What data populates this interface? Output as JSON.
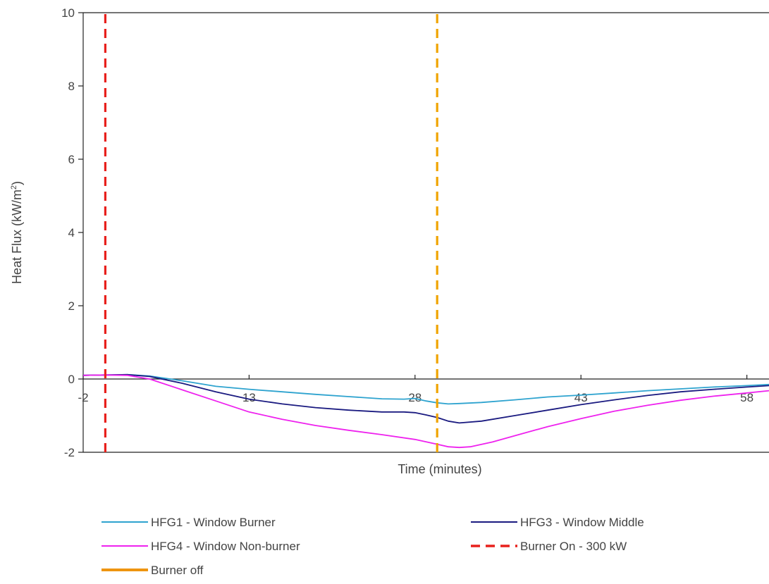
{
  "chart_data": {
    "type": "line",
    "title": "",
    "xlabel": "Time (minutes)",
    "ylabel_main": "Heat Flux (kW/m",
    "ylabel_sup": "2",
    "ylabel_close": ")",
    "xlim": [
      -2,
      60
    ],
    "ylim": [
      -2,
      10
    ],
    "x_ticks": [
      -2,
      13,
      28,
      43,
      58
    ],
    "y_ticks": [
      -2,
      0,
      2,
      4,
      6,
      8,
      10
    ],
    "grid": false,
    "legend_position": "bottom",
    "series": [
      {
        "name": "HFG1 - Window Burner",
        "color": "#2ea3cf",
        "style": "solid",
        "x": [
          -2,
          0,
          2,
          4,
          7,
          10,
          13,
          16,
          19,
          22,
          25,
          27,
          28,
          29,
          30,
          31,
          32,
          34,
          37,
          40,
          43,
          46,
          49,
          52,
          55,
          58,
          60
        ],
        "y": [
          0.1,
          0.11,
          0.12,
          0.08,
          -0.05,
          -0.2,
          -0.28,
          -0.35,
          -0.42,
          -0.48,
          -0.54,
          -0.55,
          -0.53,
          -0.6,
          -0.65,
          -0.68,
          -0.67,
          -0.64,
          -0.57,
          -0.49,
          -0.44,
          -0.38,
          -0.32,
          -0.27,
          -0.22,
          -0.18,
          -0.15
        ]
      },
      {
        "name": "HFG3 - Window Middle",
        "color": "#1a1a80",
        "style": "solid",
        "x": [
          -2,
          0,
          2,
          4,
          7,
          10,
          13,
          16,
          19,
          22,
          25,
          27,
          28,
          29,
          30,
          31,
          32,
          34,
          37,
          40,
          43,
          46,
          49,
          52,
          55,
          58,
          60
        ],
        "y": [
          0.1,
          0.11,
          0.12,
          0.07,
          -0.12,
          -0.35,
          -0.55,
          -0.68,
          -0.78,
          -0.85,
          -0.9,
          -0.9,
          -0.92,
          -0.98,
          -1.05,
          -1.15,
          -1.2,
          -1.15,
          -1.0,
          -0.85,
          -0.7,
          -0.57,
          -0.45,
          -0.35,
          -0.28,
          -0.22,
          -0.18
        ]
      },
      {
        "name": "HFG4 - Window Non-burner",
        "color": "#ee22ee",
        "style": "solid",
        "x": [
          -2,
          0,
          2,
          4,
          7,
          10,
          13,
          16,
          19,
          22,
          25,
          28,
          30,
          31,
          32,
          33,
          35,
          37,
          40,
          43,
          46,
          49,
          52,
          55,
          58,
          60
        ],
        "y": [
          0.1,
          0.11,
          0.1,
          0.0,
          -0.3,
          -0.6,
          -0.9,
          -1.1,
          -1.27,
          -1.4,
          -1.52,
          -1.65,
          -1.78,
          -1.85,
          -1.87,
          -1.85,
          -1.72,
          -1.55,
          -1.3,
          -1.08,
          -0.88,
          -0.72,
          -0.58,
          -0.47,
          -0.38,
          -0.32
        ]
      },
      {
        "name": "Burner On - 300 kW",
        "color": "#e8201c",
        "style": "dashed",
        "x": [
          0,
          0
        ],
        "y": [
          -2,
          10
        ]
      },
      {
        "name": "Burner off",
        "color": "#f0a400",
        "style": "dashed",
        "legend_color": "#ee9510",
        "x": [
          30,
          30
        ],
        "y": [
          -2,
          10
        ]
      }
    ]
  }
}
